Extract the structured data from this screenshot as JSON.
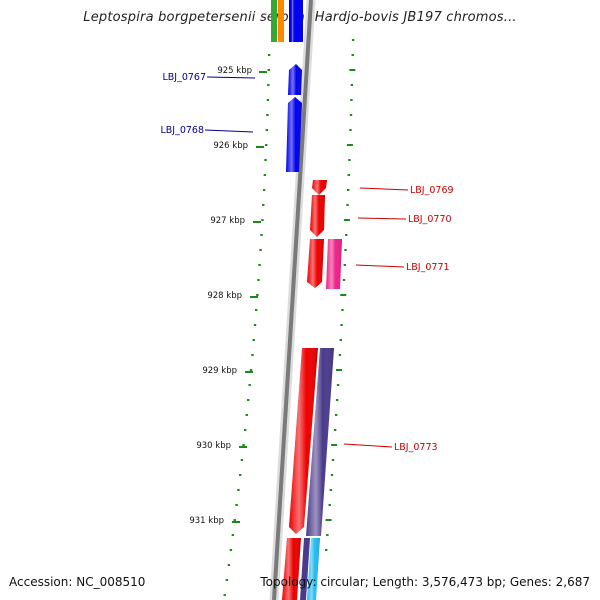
{
  "title": "Leptospira borgpetersenii serovar Hardjo-bovis JB197 chromos...",
  "footer": {
    "accession": "Accession: NC_008510",
    "topology": "Topology: circular; Length: 3,576,473 bp; Genes: 2,687"
  },
  "ticks": [
    "925 kbp",
    "926 kbp",
    "927 kbp",
    "928 kbp",
    "929 kbp",
    "930 kbp",
    "931 kbp"
  ],
  "gene_labels": {
    "left": [
      "LBJ_0767",
      "LBJ_0768"
    ],
    "right": [
      "LBJ_0769",
      "LBJ_0770",
      "LBJ_0771",
      "LBJ_0773"
    ]
  },
  "colors": {
    "backbone": "#808080",
    "tick_green": "#1a8a1a",
    "left_label": "#00008b",
    "right_label": "#cc0000",
    "blue_gene": "#0000ee",
    "red_gene": "#ee0000",
    "magenta_gene": "#ee2288",
    "purple_gene": "#4b3b8c",
    "cyan_gene": "#22bbee",
    "orange_gene": "#ff8800",
    "green_gene": "#33aa33"
  }
}
